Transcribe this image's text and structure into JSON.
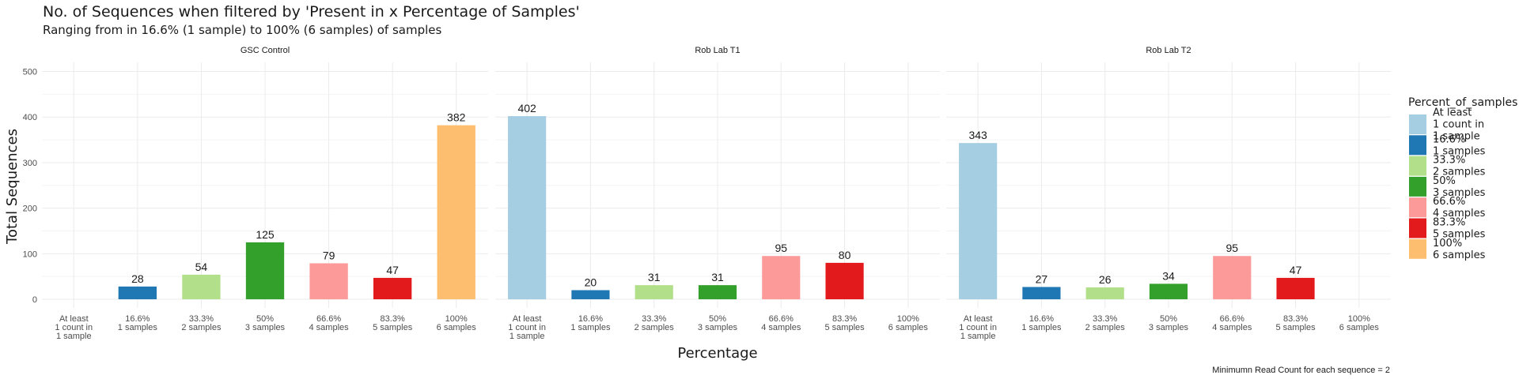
{
  "chart_data": {
    "type": "bar",
    "title": "No. of Sequences when filtered by 'Present in x Percentage of Samples'",
    "subtitle": "Ranging from in 16.6% (1 sample) to 100% (6 samples) of samples",
    "xlabel": "Percentage",
    "ylabel": "Total Sequences",
    "ylim": [
      0,
      520
    ],
    "yticks": [
      "0",
      "100",
      "200",
      "300",
      "400",
      "500"
    ],
    "grid": true,
    "caption": "Minimumn Read Count for each sequence = 2",
    "categories": [
      [
        "At least",
        "1 count in",
        "1 sample"
      ],
      [
        "16.6%",
        "1 samples"
      ],
      [
        "33.3%",
        "2 samples"
      ],
      [
        "50%",
        "3 samples"
      ],
      [
        "66.6%",
        "4 samples"
      ],
      [
        "83.3%",
        "5 samples"
      ],
      [
        "100%",
        "6 samples"
      ]
    ],
    "legend": {
      "title": "Percent_of_samples",
      "position": "right",
      "items": [
        {
          "lines": [
            "At least",
            "1 count in",
            "1 sample"
          ],
          "color": "#a6cee3"
        },
        {
          "lines": [
            "16.6%",
            "1 samples"
          ],
          "color": "#1f78b4"
        },
        {
          "lines": [
            "33.3%",
            "2 samples"
          ],
          "color": "#b2df8a"
        },
        {
          "lines": [
            "50%",
            "3 samples"
          ],
          "color": "#33a02c"
        },
        {
          "lines": [
            "66.6%",
            "4 samples"
          ],
          "color": "#fb9a99"
        },
        {
          "lines": [
            "83.3%",
            "5 samples"
          ],
          "color": "#e31a1c"
        },
        {
          "lines": [
            "100%",
            "6 samples"
          ],
          "color": "#fdbf6f"
        }
      ]
    },
    "facets": [
      {
        "name": "GSC Control",
        "values": [
          null,
          28,
          54,
          125,
          79,
          47,
          382
        ]
      },
      {
        "name": "Rob Lab T1",
        "values": [
          402,
          20,
          31,
          31,
          95,
          80,
          null
        ]
      },
      {
        "name": "Rob Lab T2",
        "values": [
          343,
          27,
          26,
          34,
          95,
          47,
          null
        ]
      }
    ]
  }
}
